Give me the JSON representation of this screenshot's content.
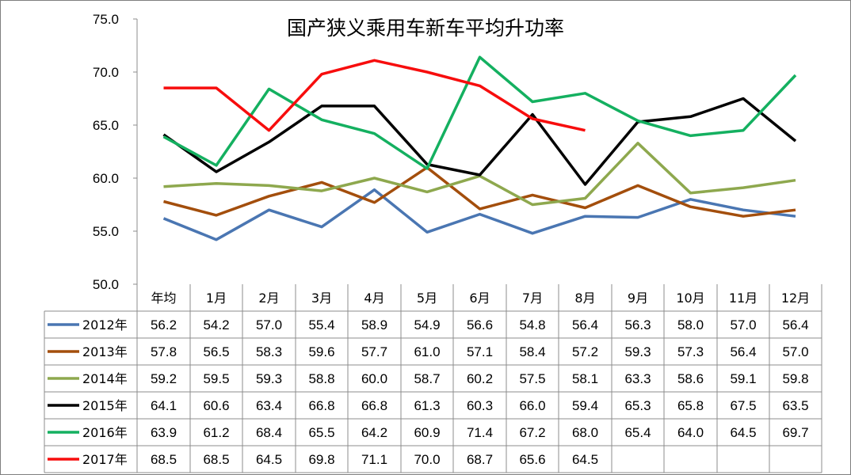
{
  "chart_data": {
    "type": "line",
    "title": "国产狭义乘用车新车平均升功率",
    "categories": [
      "年均",
      "1月",
      "2月",
      "3月",
      "4月",
      "5月",
      "6月",
      "7月",
      "8月",
      "9月",
      "10月",
      "11月",
      "12月"
    ],
    "ylim": [
      50,
      75
    ],
    "yticks": [
      "50.0",
      "55.0",
      "60.0",
      "65.0",
      "70.0",
      "75.0"
    ],
    "grid": false,
    "legend": "data-table",
    "series": [
      {
        "name": "2012年",
        "color": "#4a76b2",
        "values": [
          56.2,
          54.2,
          57.0,
          55.4,
          58.9,
          54.9,
          56.6,
          54.8,
          56.4,
          56.3,
          58.0,
          57.0,
          56.4
        ]
      },
      {
        "name": "2013年",
        "color": "#a34e0c",
        "values": [
          57.8,
          56.5,
          58.3,
          59.6,
          57.7,
          61.0,
          57.1,
          58.4,
          57.2,
          59.3,
          57.3,
          56.4,
          57.0
        ]
      },
      {
        "name": "2014年",
        "color": "#8ea84e",
        "values": [
          59.2,
          59.5,
          59.3,
          58.8,
          60.0,
          58.7,
          60.2,
          57.5,
          58.1,
          63.3,
          58.6,
          59.1,
          59.8
        ]
      },
      {
        "name": "2015年",
        "color": "#000000",
        "values": [
          64.1,
          60.6,
          63.4,
          66.8,
          66.8,
          61.3,
          60.3,
          66.0,
          59.4,
          65.3,
          65.8,
          67.5,
          63.5
        ]
      },
      {
        "name": "2016年",
        "color": "#14b060",
        "values": [
          63.9,
          61.2,
          68.4,
          65.5,
          64.2,
          60.9,
          71.4,
          67.2,
          68.0,
          65.4,
          64.0,
          64.5,
          69.7
        ]
      },
      {
        "name": "2017年",
        "color": "#f70d0d",
        "values": [
          68.5,
          68.5,
          64.5,
          69.8,
          71.1,
          70.0,
          68.7,
          65.6,
          64.5,
          null,
          null,
          null,
          null
        ]
      }
    ]
  }
}
